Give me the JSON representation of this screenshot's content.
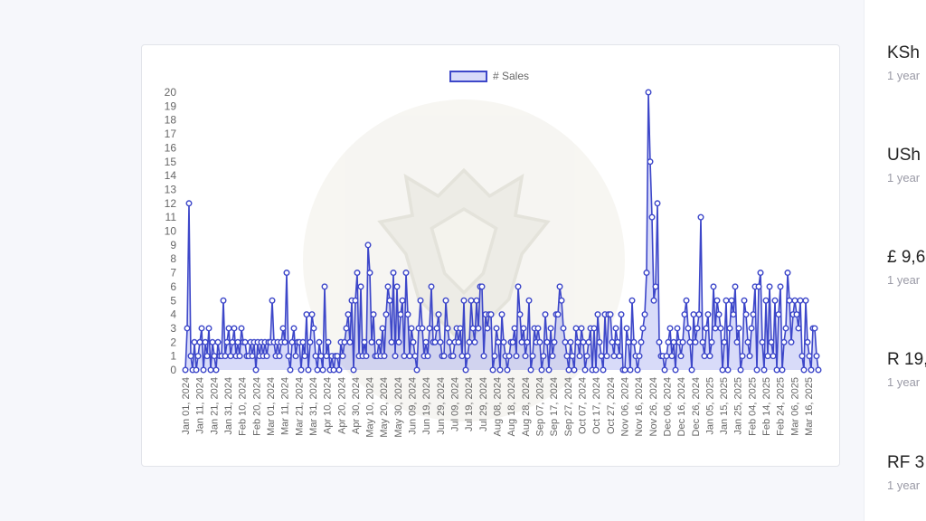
{
  "chart_data": {
    "type": "line",
    "legend": "# Sales",
    "ylim": [
      0,
      20
    ],
    "yticks": [
      0,
      1,
      2,
      3,
      4,
      5,
      6,
      7,
      8,
      9,
      10,
      11,
      12,
      13,
      14,
      15,
      16,
      17,
      18,
      19,
      20
    ],
    "x_start": "2024-01-01",
    "x_end": "2025-03-23",
    "xtick_labels": [
      "Jan 01, 2024",
      "Jan 11, 2024",
      "Jan 21, 2024",
      "Jan 31, 2024",
      "Feb 10, 2024",
      "Feb 20, 2024",
      "Mar 01, 2024",
      "Mar 11, 2024",
      "Mar 21, 2024",
      "Mar 31, 2024",
      "Apr 10, 2024",
      "Apr 20, 2024",
      "Apr 30, 2024",
      "May 10, 2024",
      "May 20, 2024",
      "May 30, 2024",
      "Jun 09, 2024",
      "Jun 19, 2024",
      "Jun 29, 2024",
      "Jul 09, 2024",
      "Jul 19, 2024",
      "Jul 29, 2024",
      "Aug 08, 2024",
      "Aug 18, 2024",
      "Aug 28, 2024",
      "Sep 07, 2024",
      "Sep 17, 2024",
      "Sep 27, 2024",
      "Oct 07, 2024",
      "Oct 17, 2024",
      "Oct 27, 2024",
      "Nov 06, 2024",
      "Nov 16, 2024",
      "Nov 26, 2024",
      "Dec 06, 2024",
      "Dec 16, 2024",
      "Dec 26, 2024",
      "Jan 05, 2025",
      "Jan 15, 2025",
      "Jan 25, 2025",
      "Feb 04, 2025",
      "Feb 14, 2025",
      "Feb 24, 2025",
      "Mar 06, 2025",
      "Mar 16, 2025"
    ],
    "series": [
      {
        "name": "# Sales",
        "color": "#3d47c9",
        "fill": "rgba(99,110,230,0.25)",
        "values": [
          0,
          3,
          12,
          1,
          0,
          2,
          0,
          1,
          2,
          3,
          0,
          2,
          1,
          3,
          0,
          2,
          1,
          0,
          2,
          1,
          1,
          5,
          1,
          2,
          3,
          1,
          2,
          3,
          1,
          2,
          1,
          3,
          2,
          2,
          1,
          1,
          2,
          1,
          2,
          0,
          2,
          1,
          2,
          1,
          2,
          1,
          2,
          2,
          5,
          2,
          1,
          2,
          1,
          2,
          3,
          2,
          7,
          1,
          0,
          2,
          3,
          1,
          2,
          2,
          0,
          2,
          1,
          4,
          0,
          2,
          4,
          3,
          1,
          0,
          2,
          1,
          0,
          6,
          1,
          2,
          0,
          1,
          0,
          1,
          1,
          0,
          2,
          1,
          2,
          3,
          4,
          2,
          5,
          0,
          5,
          7,
          1,
          6,
          1,
          2,
          1,
          9,
          7,
          2,
          4,
          1,
          1,
          2,
          1,
          3,
          1,
          4,
          6,
          5,
          2,
          7,
          1,
          6,
          2,
          4,
          5,
          1,
          7,
          4,
          1,
          3,
          2,
          1,
          0,
          3,
          5,
          3,
          1,
          2,
          1,
          3,
          6,
          2,
          2,
          3,
          4,
          2,
          1,
          1,
          5,
          3,
          2,
          1,
          1,
          2,
          3,
          2,
          3,
          1,
          5,
          0,
          1,
          2,
          5,
          3,
          2,
          5,
          3,
          6,
          6,
          1,
          4,
          3,
          4,
          4,
          0,
          1,
          3,
          2,
          0,
          4,
          2,
          1,
          0,
          1,
          2,
          2,
          3,
          1,
          6,
          4,
          2,
          3,
          1,
          2,
          5,
          0,
          1,
          3,
          2,
          3,
          2,
          0,
          1,
          4,
          2,
          0,
          3,
          1,
          2,
          4,
          4,
          6,
          5,
          3,
          2,
          1,
          0,
          2,
          1,
          0,
          3,
          2,
          1,
          3,
          2,
          0,
          1,
          2,
          3,
          0,
          3,
          0,
          4,
          2,
          1,
          0,
          4,
          1,
          4,
          4,
          2,
          1,
          3,
          2,
          1,
          4,
          0,
          0,
          3,
          2,
          0,
          5,
          2,
          1,
          0,
          1,
          2,
          3,
          4,
          7,
          20,
          15,
          11,
          5,
          6,
          12,
          2,
          1,
          1,
          0,
          1,
          2,
          3,
          1,
          2,
          0,
          3,
          2,
          1,
          2,
          4,
          5,
          3,
          2,
          0,
          4,
          2,
          3,
          4,
          11,
          2,
          1,
          3,
          4,
          1,
          2,
          6,
          3,
          5,
          4,
          3,
          0,
          2,
          5,
          0,
          3,
          5,
          4,
          6,
          2,
          3,
          0,
          1,
          5,
          4,
          2,
          1,
          3,
          4,
          6,
          0,
          6,
          7,
          2,
          0,
          5,
          1,
          6,
          2,
          1,
          5,
          0,
          4,
          6,
          0,
          2,
          3,
          7,
          5,
          2,
          4,
          5,
          4,
          3,
          5,
          1,
          0,
          5,
          2,
          1,
          0,
          3,
          3,
          1,
          0
        ]
      }
    ]
  },
  "sidebar": {
    "stats": [
      {
        "value": "KSh",
        "period": "1 year"
      },
      {
        "value": "USh",
        "period": "1 year"
      },
      {
        "value": "£ 9,6",
        "period": "1 year"
      },
      {
        "value": "R 19,",
        "period": "1 year"
      },
      {
        "value": "RF 3",
        "period": "1 year"
      }
    ]
  }
}
